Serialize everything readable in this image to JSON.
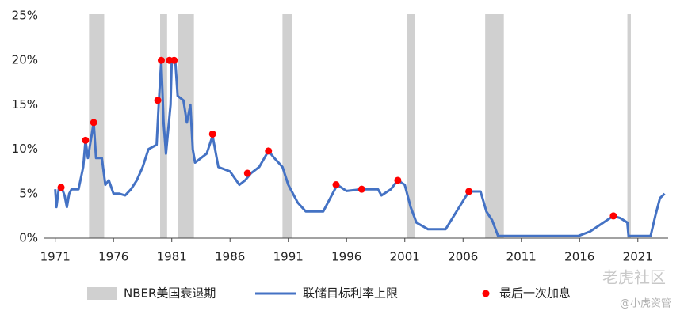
{
  "chart_data": {
    "type": "line",
    "xlim": [
      1970,
      2023.6
    ],
    "ylim": [
      0,
      25
    ],
    "xticks": [
      1971,
      1976,
      1981,
      1986,
      1991,
      1996,
      2001,
      2006,
      2011,
      2016,
      2021
    ],
    "yticks": [
      {
        "value": 0,
        "label": "0%"
      },
      {
        "value": 5,
        "label": "5%"
      },
      {
        "value": 10,
        "label": "10%"
      },
      {
        "value": 15,
        "label": "15%"
      },
      {
        "value": 20,
        "label": "20%"
      },
      {
        "value": 25,
        "label": "25%"
      }
    ],
    "recessions": {
      "name": "NBER美国衰退期",
      "color": "#d0d0d0",
      "ranges": [
        [
          1973.9,
          1975.2
        ],
        [
          1980.0,
          1980.6
        ],
        [
          1981.5,
          1982.9
        ],
        [
          1990.5,
          1991.3
        ],
        [
          2001.2,
          2001.9
        ],
        [
          2007.9,
          2009.5
        ],
        [
          2020.1,
          2020.4
        ]
      ]
    },
    "series": [
      {
        "name": "联储目标利率上限",
        "color": "#4472c4",
        "x": [
          1971,
          1971.1,
          1971.3,
          1971.6,
          1971.8,
          1972,
          1972.2,
          1972.4,
          1973,
          1973.4,
          1973.6,
          1973.8,
          1974.3,
          1974.5,
          1975.0,
          1975.3,
          1975.6,
          1976,
          1976.5,
          1977,
          1977.5,
          1978,
          1978.5,
          1979,
          1979.7,
          1979.9,
          1980.1,
          1980.3,
          1980.5,
          1980.9,
          1981,
          1981.3,
          1981.5,
          1982,
          1982.3,
          1982.6,
          1982.8,
          1983,
          1983.5,
          1984,
          1984.5,
          1985,
          1986,
          1986.8,
          1987.3,
          1987.8,
          1988.5,
          1989.3,
          1989.8,
          1990.5,
          1991,
          1991.8,
          1992.5,
          1994,
          1995.2,
          1996,
          1997.3,
          1998.7,
          1999,
          1999.8,
          2000.4,
          2001,
          2001.5,
          2002,
          2003,
          2004.5,
          2006.5,
          2007.5,
          2008,
          2008.5,
          2009,
          2015.9,
          2016.9,
          2018.9,
          2019.5,
          2020.1,
          2020.2,
          2022.1,
          2022.5,
          2022.9,
          2023.3
        ],
        "values": [
          5.5,
          3.5,
          5.5,
          5.5,
          4.8,
          3.5,
          5,
          5.5,
          5.5,
          8,
          11,
          9,
          13,
          9,
          9,
          6,
          6.5,
          5,
          5,
          4.8,
          5.5,
          6.5,
          8,
          10,
          10.5,
          15.5,
          20,
          13,
          9.5,
          15,
          20,
          20,
          16,
          15.5,
          13,
          15,
          10,
          8.5,
          9,
          9.5,
          11.5,
          8,
          7.5,
          6,
          6.5,
          7.3,
          8,
          9.8,
          9,
          8,
          6,
          4,
          3,
          3,
          6,
          5.3,
          5.5,
          5.5,
          4.8,
          5.5,
          6.5,
          6,
          3.5,
          1.75,
          1,
          1,
          5.25,
          5.25,
          3,
          2,
          0.25,
          0.25,
          0.75,
          2.5,
          2.25,
          1.75,
          0.25,
          0.25,
          2.5,
          4.5,
          5
        ]
      },
      {
        "name": "最后一次加息",
        "color": "#ff0000",
        "kind": "dots",
        "x": [
          1971.5,
          1973.6,
          1974.3,
          1979.8,
          1980.1,
          1980.8,
          1981.2,
          1984.5,
          1987.5,
          1989.3,
          1995.1,
          1997.3,
          2000.4,
          2006.5,
          2018.9
        ],
        "values": [
          5.7,
          11,
          13,
          15.5,
          20,
          20,
          20,
          11.7,
          7.3,
          9.8,
          6,
          5.5,
          6.5,
          5.25,
          2.5
        ]
      }
    ],
    "watermark": [
      "老虎社区",
      "@小虎资管"
    ]
  }
}
